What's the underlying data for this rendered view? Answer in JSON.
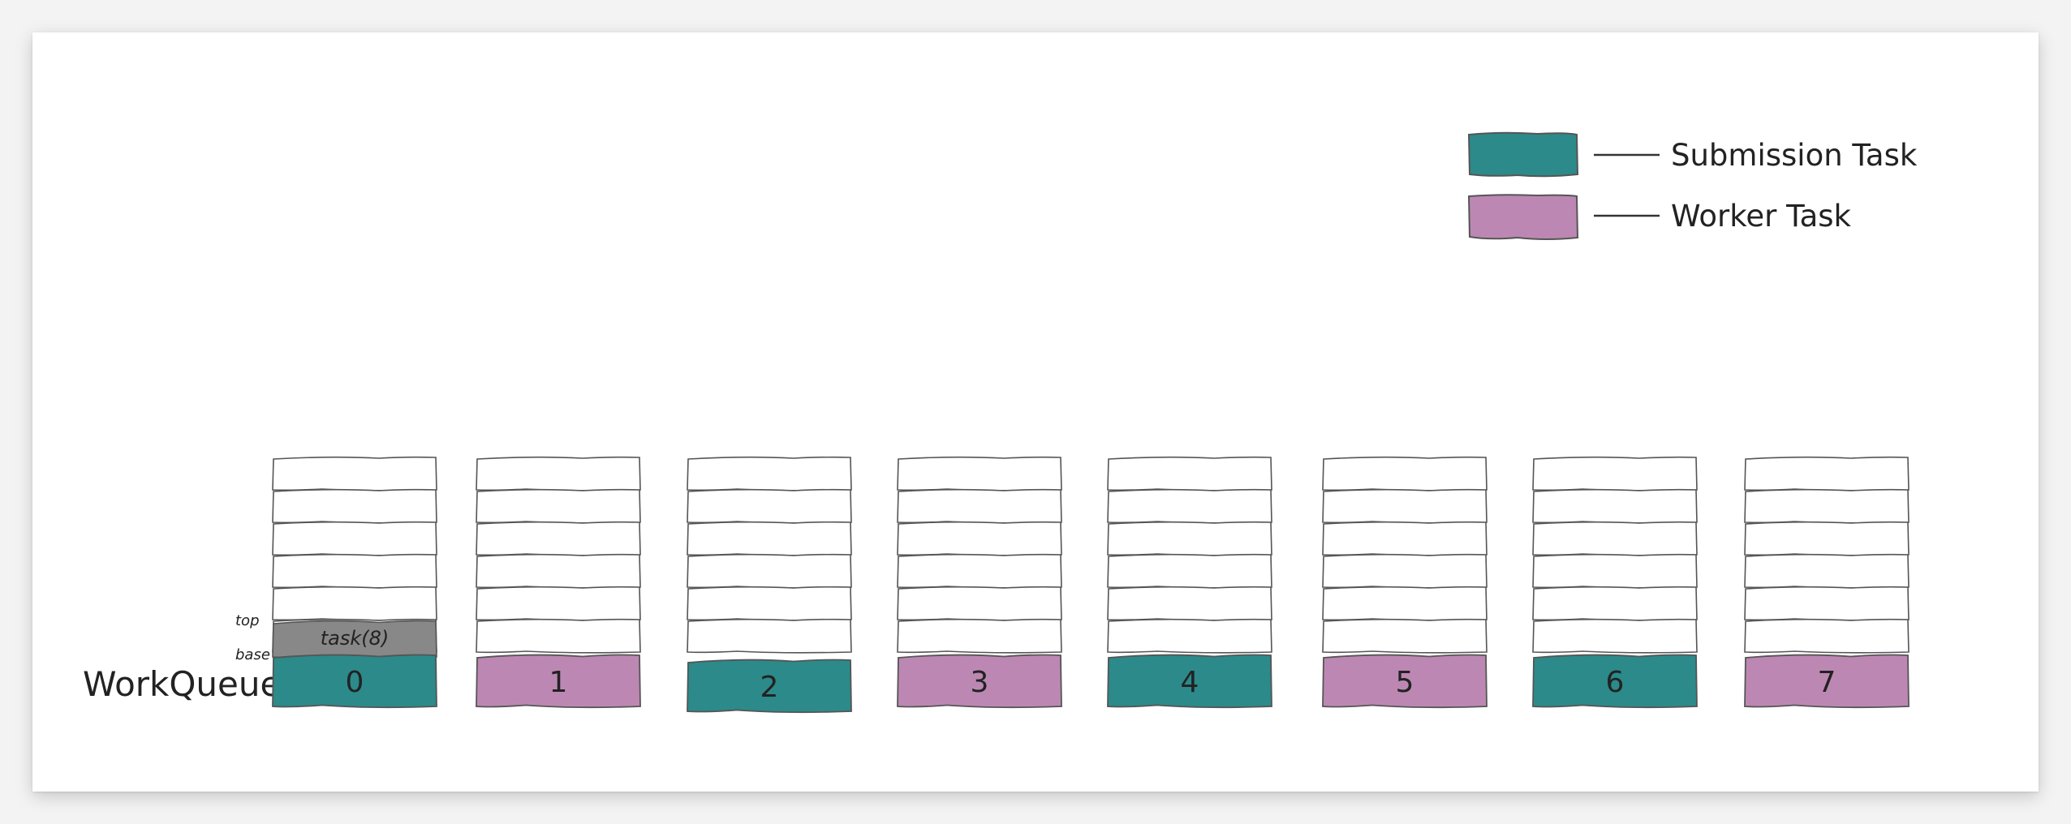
{
  "legend": {
    "items": [
      {
        "label": "Submission Task",
        "color": "#2c8a8a"
      },
      {
        "label": "Worker Task",
        "color": "#bc88b3"
      }
    ]
  },
  "row_label": "WorkQueue[]",
  "pointers": {
    "top": "top",
    "base": "base"
  },
  "queued_task": {
    "label": "task(8)",
    "color": "#888888"
  },
  "queues": [
    {
      "index": "0",
      "kind": "Submission Task"
    },
    {
      "index": "1",
      "kind": "Worker Task"
    },
    {
      "index": "2",
      "kind": "Submission Task"
    },
    {
      "index": "3",
      "kind": "Worker Task"
    },
    {
      "index": "4",
      "kind": "Submission Task"
    },
    {
      "index": "5",
      "kind": "Worker Task"
    },
    {
      "index": "6",
      "kind": "Submission Task"
    },
    {
      "index": "7",
      "kind": "Worker Task"
    }
  ],
  "colors": {
    "submission": "#2c8a8a",
    "worker": "#bc88b3",
    "task": "#888888",
    "stroke": "#555555",
    "text": "#222222"
  }
}
